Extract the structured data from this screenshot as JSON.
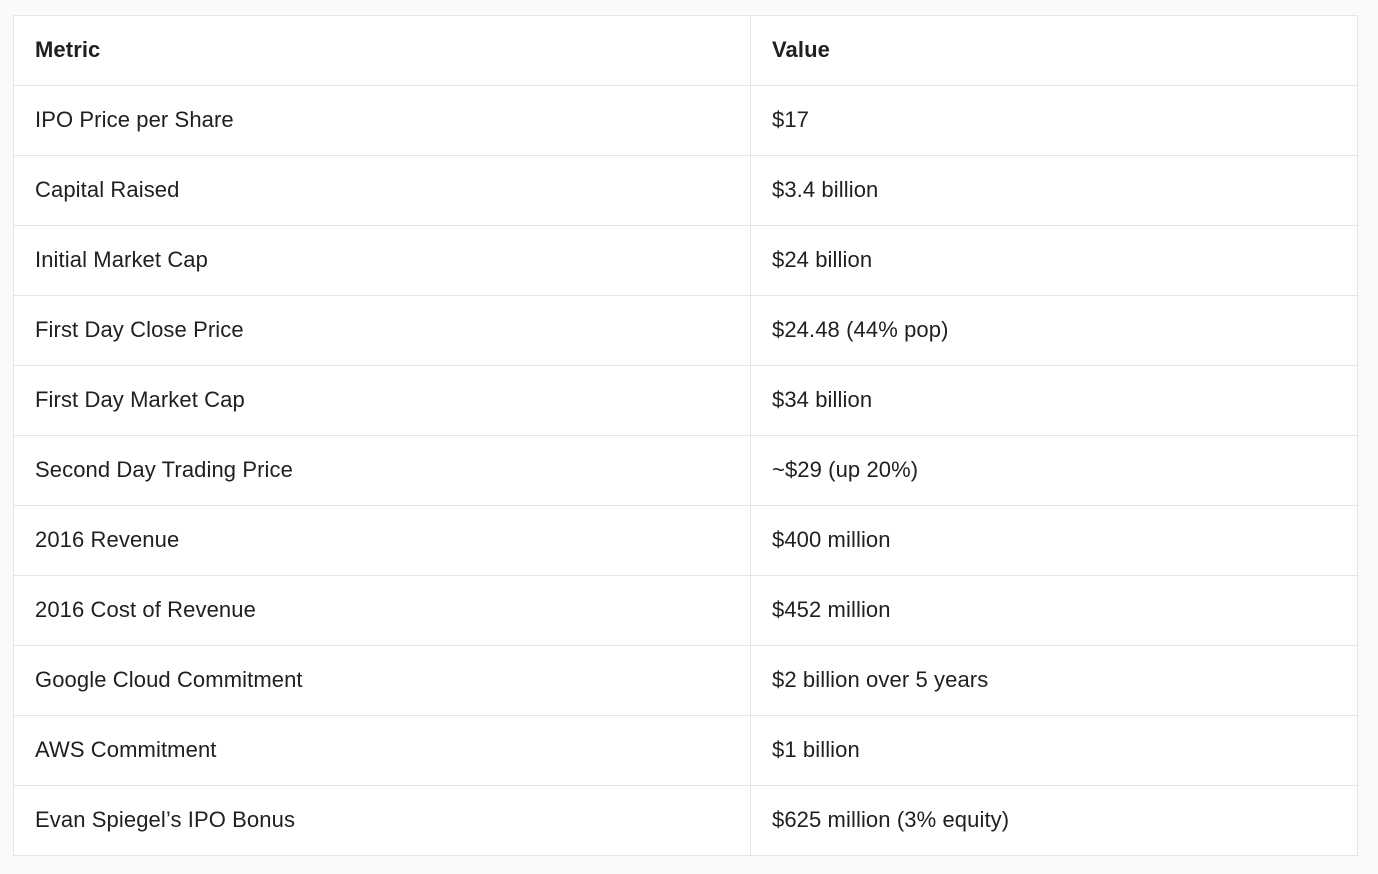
{
  "theme": {
    "page_background": "#fafafa",
    "cell_background": "#ffffff",
    "border_color": "#e5e5e5",
    "text_color": "#202020"
  },
  "table": {
    "columns": [
      "Metric",
      "Value"
    ],
    "rows": [
      {
        "metric": "IPO Price per Share",
        "value": "$17"
      },
      {
        "metric": "Capital Raised",
        "value": "$3.4 billion"
      },
      {
        "metric": "Initial Market Cap",
        "value": "$24 billion"
      },
      {
        "metric": "First Day Close Price",
        "value": "$24.48 (44% pop)"
      },
      {
        "metric": "First Day Market Cap",
        "value": "$34 billion"
      },
      {
        "metric": "Second Day Trading Price",
        "value": "~$29 (up 20%)"
      },
      {
        "metric": "2016 Revenue",
        "value": "$400 million"
      },
      {
        "metric": "2016 Cost of Revenue",
        "value": "$452 million"
      },
      {
        "metric": "Google Cloud Commitment",
        "value": "$2 billion over 5 years"
      },
      {
        "metric": "AWS Commitment",
        "value": "$1 billion"
      },
      {
        "metric": "Evan Spiegel’s IPO Bonus",
        "value": "$625 million (3% equity)"
      }
    ]
  }
}
